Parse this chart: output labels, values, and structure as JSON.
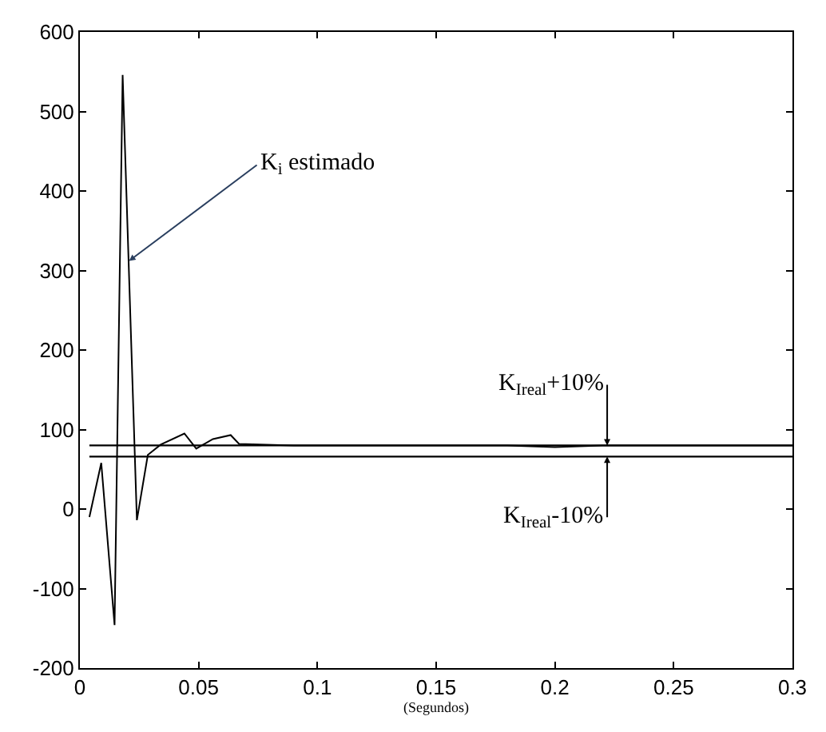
{
  "chart_data": {
    "type": "line",
    "xlabel": "(Segundos)",
    "x": [
      0.004,
      0.009,
      0.0146,
      0.018,
      0.024,
      0.0286,
      0.034,
      0.044,
      0.049,
      0.056,
      0.0635,
      0.067,
      0.09,
      0.12,
      0.15,
      0.18,
      0.2,
      0.22,
      0.25,
      0.3
    ],
    "series": [
      {
        "color": "#000000",
        "values": [
          -10,
          58,
          -146,
          546,
          -14,
          68,
          81,
          95,
          76,
          88,
          93,
          82,
          80,
          80,
          80,
          80,
          78,
          80,
          80,
          80
        ]
      }
    ],
    "xlim": [
      0,
      0.3
    ],
    "ylim": [
      -200,
      600
    ],
    "xticks": [
      0,
      0.05,
      0.1,
      0.15,
      0.2,
      0.25,
      0.3
    ],
    "yticks": [
      -200,
      -100,
      0,
      100,
      200,
      300,
      400,
      500,
      600
    ],
    "marker": "none",
    "line_style": "solid",
    "ref_lines": [
      {
        "axis": "y",
        "value": 80,
        "label": "K$_{Ireal}$+10%",
        "color": "#000000"
      },
      {
        "axis": "y",
        "value": 66,
        "label": "K$_{Ireal}$-10%",
        "color": "#000000"
      }
    ],
    "annotations": [
      {
        "text": "K$_{i}$ estimado",
        "x": 0.0207,
        "y": 312
      }
    ]
  }
}
